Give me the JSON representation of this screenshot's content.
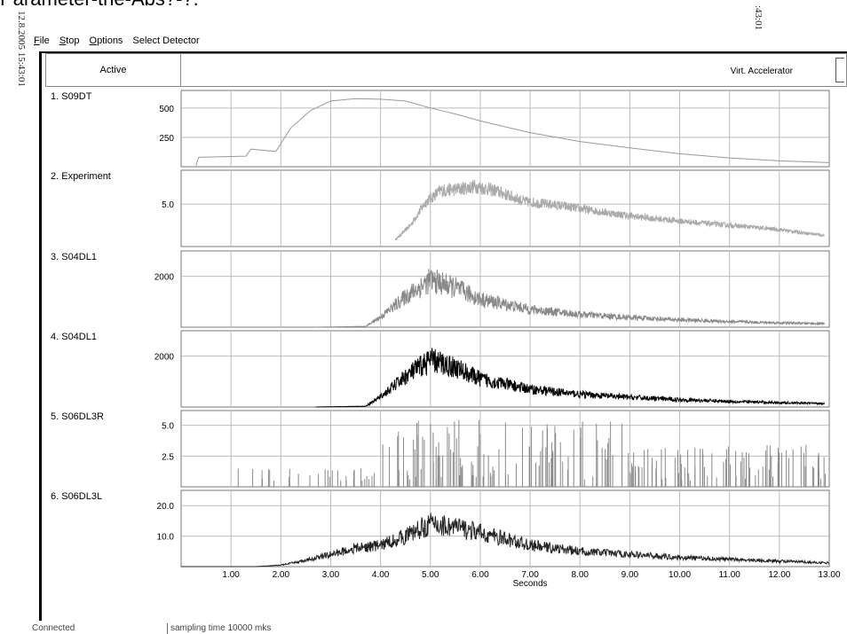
{
  "window_title": "Parameter-the-Abs?-?.",
  "side_text_left": "12.8.2005 15:43:01",
  "side_text_right": ":43:01",
  "menu": [
    {
      "label": "File",
      "accel": "F",
      "rest": "ile"
    },
    {
      "label": "Stop",
      "accel": "S",
      "rest": "top"
    },
    {
      "label": "Options",
      "accel": "O",
      "rest": "ptions"
    },
    {
      "label": "Select Detector",
      "accel": "",
      "rest": "Select Detector"
    }
  ],
  "header": {
    "active_label": "Active",
    "source_label": "Virt. Accelerator"
  },
  "x_axis": {
    "label": "Seconds",
    "min": 0,
    "max": 13,
    "ticks": [
      "1.00",
      "2.00",
      "3.00",
      "4.00",
      "5.00",
      "6.00",
      "7.00",
      "8.00",
      "9.00",
      "10.00",
      "11.00",
      "12.00",
      "13.00"
    ]
  },
  "chart_data": [
    {
      "type": "line",
      "name": "1. S09DT",
      "yticks": [
        "500",
        "250"
      ],
      "ytick_values": [
        500,
        250
      ],
      "ylim": [
        0,
        650
      ],
      "color": "#999999",
      "x": [
        0.3,
        0.35,
        1.3,
        1.4,
        1.9,
        2.2,
        2.6,
        3.0,
        3.5,
        4.0,
        4.5,
        5.0,
        5.5,
        6.0,
        6.5,
        7.0,
        8.0,
        9.0,
        10.0,
        11.0,
        12.0,
        13.0
      ],
      "y": [
        10,
        80,
        90,
        150,
        130,
        330,
        480,
        560,
        580,
        575,
        560,
        500,
        450,
        390,
        340,
        290,
        215,
        160,
        110,
        75,
        50,
        35
      ]
    },
    {
      "type": "line",
      "name": "2. Experiment",
      "yticks": [
        "5.0"
      ],
      "ytick_values": [
        5
      ],
      "ylim": [
        0,
        9
      ],
      "color": "#aaaaaa",
      "x": [
        4.3,
        4.6,
        4.9,
        5.2,
        5.6,
        5.9,
        6.3,
        6.9,
        7.5,
        8.2,
        9.0,
        10.0,
        11.0,
        12.0,
        12.9
      ],
      "y": [
        0.8,
        2.5,
        5.2,
        6.6,
        6.8,
        7.1,
        6.6,
        5.3,
        4.9,
        4.3,
        3.6,
        3.0,
        2.5,
        2.0,
        1.3
      ],
      "noise": "moderate"
    },
    {
      "type": "line",
      "name": "3. S04DL1",
      "yticks": [
        "2000"
      ],
      "ytick_values": [
        2000
      ],
      "ylim": [
        0,
        3000
      ],
      "color": "#888888",
      "x": [
        2.7,
        3.7,
        4.0,
        4.5,
        5.0,
        5.5,
        6.0,
        7.0,
        8.0,
        9.0,
        10.0,
        11.0,
        12.0,
        12.9
      ],
      "y": [
        0,
        30,
        400,
        1200,
        1850,
        1550,
        1100,
        700,
        500,
        380,
        290,
        220,
        170,
        140
      ],
      "noise": "high"
    },
    {
      "type": "line",
      "name": "4. S04DL1",
      "yticks": [
        "2000"
      ],
      "ytick_values": [
        2000
      ],
      "ylim": [
        0,
        3000
      ],
      "color": "#000000",
      "x": [
        2.7,
        3.7,
        4.0,
        4.5,
        5.0,
        5.5,
        6.0,
        7.0,
        8.0,
        9.0,
        10.0,
        11.0,
        12.0,
        12.9
      ],
      "y": [
        0,
        30,
        400,
        1200,
        1850,
        1550,
        1100,
        700,
        500,
        380,
        290,
        220,
        170,
        140
      ],
      "noise": "high"
    },
    {
      "type": "bar",
      "name": "5. S06DL3R",
      "yticks": [
        "5.0",
        "2.5"
      ],
      "ytick_values": [
        5,
        2.5
      ],
      "ylim": [
        0,
        6.2
      ],
      "color": "#888888",
      "spikes": "sparse before 4.0 s, dense between 4.5 and 13 s, values 0.5–5.5"
    },
    {
      "type": "line",
      "name": "6. S06DL3L",
      "yticks": [
        "20.0",
        "10.0"
      ],
      "ytick_values": [
        20,
        10
      ],
      "ylim": [
        0,
        25
      ],
      "color": "#222222",
      "x": [
        0,
        1.5,
        2.0,
        2.5,
        3.0,
        3.5,
        4.0,
        4.5,
        5.0,
        5.5,
        6.0,
        6.5,
        7.0,
        8.0,
        9.0,
        10.0,
        11.0,
        12.0,
        13.0
      ],
      "y": [
        0,
        0,
        0.5,
        2,
        4,
        6,
        7,
        10,
        14,
        13,
        11,
        9,
        7,
        5,
        4,
        3,
        2.4,
        1.8,
        1.2
      ],
      "noise": "high"
    }
  ],
  "status": {
    "connection": "Connected",
    "sampling": "sampling time 10000 mks"
  }
}
